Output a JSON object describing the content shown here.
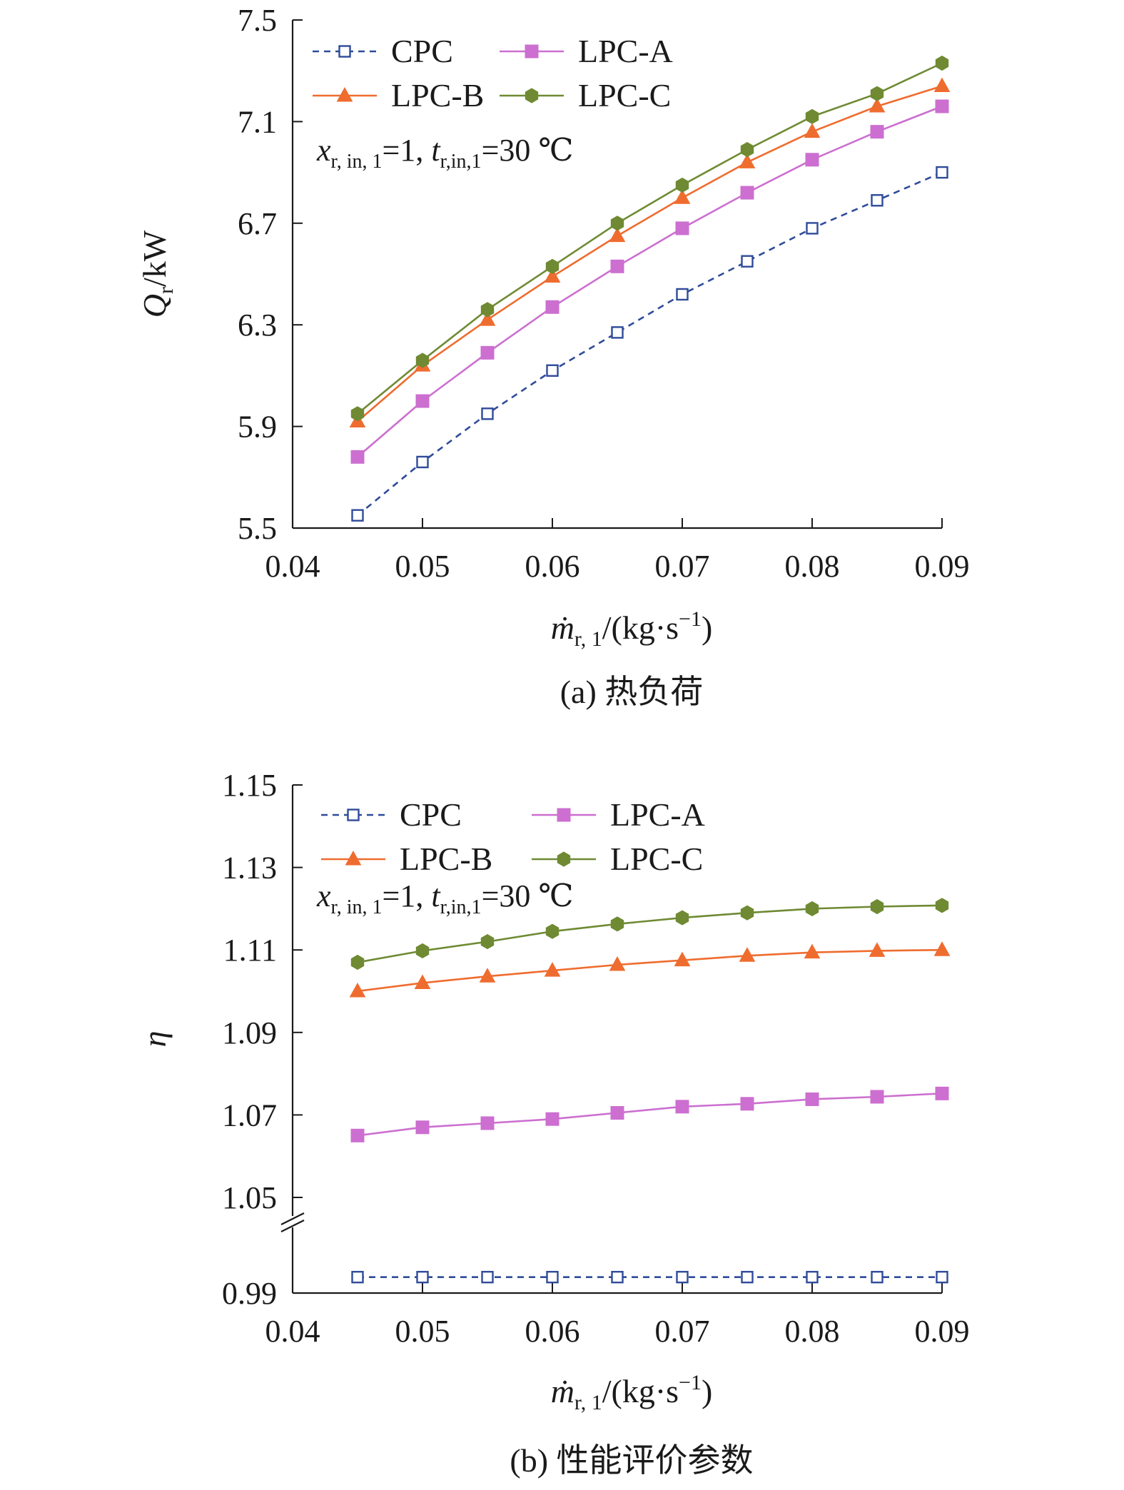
{
  "colors": {
    "CPC": "#2f4b9a",
    "LPC-A": "#cc6fd0",
    "LPC-B": "#ef6c2f",
    "LPC-C": "#6f8a33",
    "axis": "#1a1a1a"
  },
  "chart_data": [
    {
      "type": "line",
      "title": "",
      "caption": "(a) 热负荷",
      "xlabel": {
        "var": "ṁ",
        "sub": "r, 1",
        "rest": "/(kg·s",
        "sup": "−1",
        "close": ")"
      },
      "ylabel": {
        "var": "Q",
        "sub": "r",
        "rest": "/kW"
      },
      "annotation": {
        "x_var": "x",
        "x_sub": "r, in, 1",
        "x_val": "=1, ",
        "t_var": "t",
        "t_sub": "r,in,1",
        "t_val": "=30 ℃"
      },
      "xlim": [
        0.04,
        0.09
      ],
      "ylim": [
        5.5,
        7.5
      ],
      "xticks": [
        "0.04",
        "0.05",
        "0.06",
        "0.07",
        "0.08",
        "0.09"
      ],
      "xtick_values": [
        0.04,
        0.05,
        0.06,
        0.07,
        0.08,
        0.09
      ],
      "yticks": [
        "5.5",
        "5.9",
        "6.3",
        "6.7",
        "7.1",
        "7.5"
      ],
      "ytick_values": [
        5.5,
        5.9,
        6.3,
        6.7,
        7.1,
        7.5
      ],
      "x": [
        0.045,
        0.05,
        0.055,
        0.06,
        0.065,
        0.07,
        0.075,
        0.08,
        0.085,
        0.09
      ],
      "legend": [
        "CPC",
        "LPC-A",
        "LPC-B",
        "LPC-C"
      ],
      "series": [
        {
          "name": "CPC",
          "marker": "square-open",
          "dash": true,
          "values": [
            5.55,
            5.76,
            5.95,
            6.12,
            6.27,
            6.42,
            6.55,
            6.68,
            6.79,
            6.9
          ]
        },
        {
          "name": "LPC-A",
          "marker": "square",
          "dash": false,
          "values": [
            5.78,
            6.0,
            6.19,
            6.37,
            6.53,
            6.68,
            6.82,
            6.95,
            7.06,
            7.16
          ]
        },
        {
          "name": "LPC-B",
          "marker": "triangle",
          "dash": false,
          "values": [
            5.92,
            6.14,
            6.32,
            6.49,
            6.65,
            6.8,
            6.94,
            7.06,
            7.16,
            7.24
          ]
        },
        {
          "name": "LPC-C",
          "marker": "hexagon",
          "dash": false,
          "values": [
            5.95,
            6.16,
            6.36,
            6.53,
            6.7,
            6.85,
            6.99,
            7.12,
            7.21,
            7.33
          ]
        }
      ]
    },
    {
      "type": "line",
      "title": "",
      "caption": "(b) 性能评价参数",
      "xlabel": {
        "var": "ṁ",
        "sub": "r, 1",
        "rest": "/(kg·s",
        "sup": "−1",
        "close": ")"
      },
      "ylabel": {
        "var": "η",
        "sub": "",
        "rest": ""
      },
      "annotation": {
        "x_var": "x",
        "x_sub": "r, in, 1",
        "x_val": "=1, ",
        "t_var": "t",
        "t_sub": "r,in,1",
        "t_val": "=30 ℃"
      },
      "xlim": [
        0.04,
        0.09
      ],
      "ylim": [
        0.99,
        1.15
      ],
      "axis_break": 1.05,
      "xticks": [
        "0.04",
        "0.05",
        "0.06",
        "0.07",
        "0.08",
        "0.09"
      ],
      "xtick_values": [
        0.04,
        0.05,
        0.06,
        0.07,
        0.08,
        0.09
      ],
      "yticks": [
        "0.99",
        "1.05",
        "1.07",
        "1.09",
        "1.11",
        "1.13",
        "1.15"
      ],
      "ytick_values": [
        0.99,
        1.05,
        1.07,
        1.09,
        1.11,
        1.13,
        1.15
      ],
      "x": [
        0.045,
        0.05,
        0.055,
        0.06,
        0.065,
        0.07,
        0.075,
        0.08,
        0.085,
        0.09
      ],
      "legend": [
        "CPC",
        "LPC-A",
        "LPC-B",
        "LPC-C"
      ],
      "series": [
        {
          "name": "CPC",
          "marker": "square-open",
          "dash": true,
          "values": [
            1.0,
            1.0,
            1.0,
            1.0,
            1.0,
            1.0,
            1.0,
            1.0,
            1.0,
            1.0
          ]
        },
        {
          "name": "LPC-A",
          "marker": "square",
          "dash": false,
          "values": [
            1.065,
            1.067,
            1.068,
            1.069,
            1.0705,
            1.072,
            1.0727,
            1.0738,
            1.0744,
            1.0752
          ]
        },
        {
          "name": "LPC-B",
          "marker": "triangle",
          "dash": false,
          "values": [
            1.1,
            1.102,
            1.1036,
            1.105,
            1.1064,
            1.1075,
            1.1086,
            1.1094,
            1.1098,
            1.11
          ]
        },
        {
          "name": "LPC-C",
          "marker": "hexagon",
          "dash": false,
          "values": [
            1.107,
            1.1098,
            1.112,
            1.1145,
            1.1163,
            1.1178,
            1.119,
            1.12,
            1.1205,
            1.1208
          ]
        }
      ]
    }
  ]
}
